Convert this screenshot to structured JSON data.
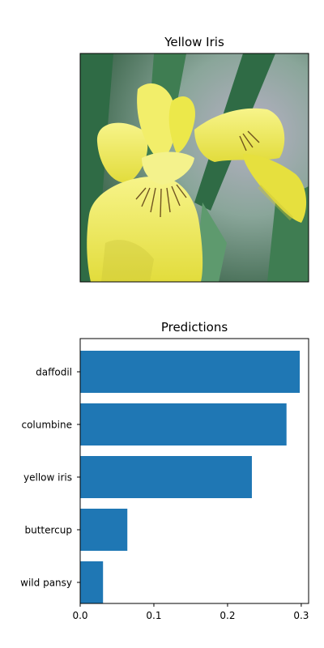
{
  "image_panel": {
    "title": "Yellow Iris",
    "image_subject": "yellow-iris-flower",
    "colors": {
      "petal": "#ece84a",
      "petal_shadow": "#c9c33a",
      "petal_highlight": "#f7f48a",
      "leaf": "#2f6b45",
      "leaf_light": "#5e9a6e",
      "background_blur": "#8aa69a",
      "vein": "#5a3a12"
    }
  },
  "chart_data": {
    "type": "bar",
    "orientation": "horizontal",
    "title": "Predictions",
    "xlabel": "",
    "ylabel": "",
    "categories": [
      "daffodil",
      "columbine",
      "yellow iris",
      "buttercup",
      "wild pansy"
    ],
    "values": [
      0.298,
      0.28,
      0.233,
      0.064,
      0.031
    ],
    "xlim": [
      0,
      0.31
    ],
    "xticks": [
      0.0,
      0.1,
      0.2,
      0.3
    ],
    "xtick_labels": [
      "0.0",
      "0.1",
      "0.2",
      "0.3"
    ],
    "grid": false,
    "legend": "none",
    "bar_color": "#1f77b4"
  }
}
